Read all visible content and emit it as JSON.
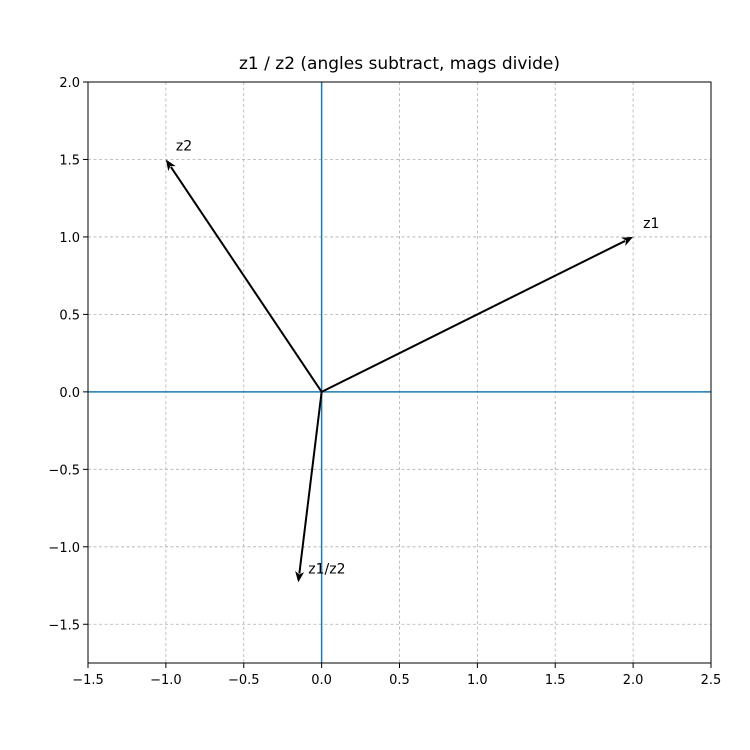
{
  "chart_data": {
    "type": "quiver",
    "title": "z1 / z2 (angles subtract, mags divide)",
    "xlabel": "",
    "ylabel": "",
    "xlim": [
      -1.5,
      2.5
    ],
    "ylim": [
      -1.75,
      2.0
    ],
    "x_ticks": [
      -1.5,
      -1.0,
      -0.5,
      0.0,
      0.5,
      1.0,
      1.5,
      2.0,
      2.5
    ],
    "x_tick_labels": [
      "−1.5",
      "−1.0",
      "−0.5",
      "0.0",
      "0.5",
      "1.0",
      "1.5",
      "2.0",
      "2.5"
    ],
    "y_ticks": [
      -1.5,
      -1.0,
      -0.5,
      0.0,
      0.5,
      1.0,
      1.5,
      2.0
    ],
    "y_tick_labels": [
      "−1.5",
      "−1.0",
      "−0.5",
      "0.0",
      "0.5",
      "1.0",
      "1.5",
      "2.0"
    ],
    "grid": true,
    "axis_lines_color": "#1f77b4",
    "vector_color": "#000000",
    "vectors": [
      {
        "label": "z1",
        "x": 2.0,
        "y": 1.0
      },
      {
        "label": "z2",
        "x": -1.0,
        "y": 1.5
      },
      {
        "label": "z1/z2",
        "x": -0.15,
        "y": -1.23
      }
    ]
  }
}
